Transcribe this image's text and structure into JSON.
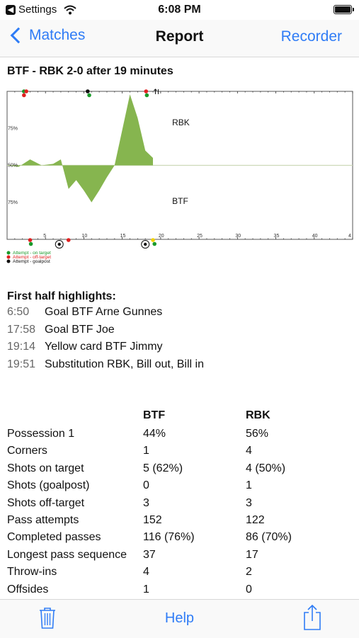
{
  "status_bar": {
    "back_app": "Settings",
    "time": "6:08 PM"
  },
  "nav": {
    "back_label": "Matches",
    "title": "Report",
    "right_label": "Recorder"
  },
  "report_heading": "BTF - RBK 2-0 after 19 minutes",
  "chart_data": {
    "type": "area",
    "title": "",
    "xlim": [
      0,
      45
    ],
    "x_ticks": [
      "5",
      "10",
      "15",
      "20",
      "25",
      "30",
      "35",
      "40",
      "4"
    ],
    "ylim": [
      0,
      100
    ],
    "y_tick_labels": [
      "75%",
      "50%",
      "75%"
    ],
    "area_labels": {
      "top": "RBK",
      "bottom": "BTF"
    },
    "series": [
      {
        "x": [
          0,
          1.5,
          3,
          4.5,
          6,
          7,
          8,
          9,
          10,
          11,
          12,
          13,
          14,
          15,
          16,
          17,
          18,
          19
        ],
        "y": [
          50,
          49,
          54,
          50,
          51,
          54,
          34,
          40,
          33,
          25,
          33,
          42,
          50,
          74,
          98,
          82,
          60,
          55
        ]
      }
    ],
    "events_top": [
      {
        "minute": 2.2,
        "type": "on-target"
      },
      {
        "minute": 2.2,
        "type": "off-target"
      },
      {
        "minute": 2.5,
        "type": "off-target"
      },
      {
        "minute": 10.5,
        "type": "goalpost"
      },
      {
        "minute": 10.7,
        "type": "on-target"
      },
      {
        "minute": 18.1,
        "type": "off-target"
      },
      {
        "minute": 18.2,
        "type": "on-target"
      },
      {
        "minute": 19.5,
        "type": "substitution"
      }
    ],
    "events_bottom": [
      {
        "minute": 3.0,
        "type": "off-target"
      },
      {
        "minute": 3.1,
        "type": "on-target"
      },
      {
        "minute": 6.8,
        "type": "goal"
      },
      {
        "minute": 8.0,
        "type": "off-target"
      },
      {
        "minute": 18.0,
        "type": "goal"
      },
      {
        "minute": 19.0,
        "type": "yellow-card"
      },
      {
        "minute": 19.2,
        "type": "on-target"
      }
    ],
    "legend": [
      {
        "label": "Attempt - on target",
        "color": "#1a9a2a"
      },
      {
        "label": "Attempt - off-target",
        "color": "#e02020"
      },
      {
        "label": "Attempt - goalpost",
        "color": "#111111"
      }
    ],
    "colors": {
      "area": "#86b54f",
      "goal_ball": "#111111",
      "yellow": "#f2d200"
    }
  },
  "highlights": {
    "title": "First half highlights:",
    "items": [
      {
        "time": "6:50",
        "text": "Goal BTF Arne Gunnes"
      },
      {
        "time": "17:58",
        "text": "Goal BTF Joe"
      },
      {
        "time": "19:14",
        "text": "Yellow card BTF Jimmy"
      },
      {
        "time": "19:51",
        "text": "Substitution RBK, Bill out, Bill in"
      }
    ]
  },
  "stats": {
    "headers": [
      "",
      "BTF",
      "RBK"
    ],
    "rows": [
      [
        "Possession 1",
        "44%",
        "56%"
      ],
      [
        "Corners",
        "1",
        "4"
      ],
      [
        "Shots on target",
        "5 (62%)",
        "4 (50%)"
      ],
      [
        "Shots (goalpost)",
        "0",
        "1"
      ],
      [
        "Shots off-target",
        "3",
        "3"
      ],
      [
        "Pass attempts",
        "152",
        "122"
      ],
      [
        "Completed passes",
        "116 (76%)",
        "86 (70%)"
      ],
      [
        "Longest pass sequence",
        "37",
        "17"
      ],
      [
        "Throw-ins",
        "4",
        "2"
      ],
      [
        "Offsides",
        "1",
        "0"
      ]
    ]
  },
  "toolbar": {
    "help_label": "Help",
    "trash_icon": "trash-icon",
    "share_icon": "share-icon"
  },
  "accent_color": "#2f7cf6"
}
